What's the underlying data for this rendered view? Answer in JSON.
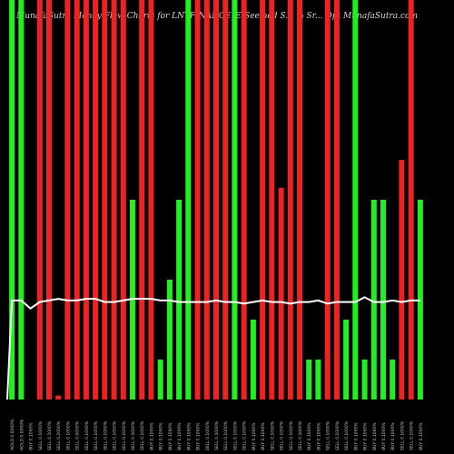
{
  "header": {
    "left": "MunafaSutra Money Flow Charts for LNTFINANCE_EB",
    "right": "Seemed S.S % Sr... Opt MunafaSutra.com"
  },
  "colors": {
    "background": "#000000",
    "up": "#22ee22",
    "down": "#ee2222",
    "line": "#ffffff",
    "tick_text": "#cccccc"
  },
  "chart_data": {
    "type": "bar",
    "title": "MunafaSutra Money Flow Charts for LNTFINANCE_EB",
    "ylim": [
      0,
      100
    ],
    "grid": false,
    "categories": [
      "HOLD 0.0000%",
      "HOLD 0.0000%",
      "BUY 0.1000%",
      "SELL 0.1000%",
      "SELL 0.1000%",
      "SELL 0.2000%",
      "SELL 0.1000%",
      "SELL 0.0000%",
      "SELL 0.1000%",
      "SELL 0.1000%",
      "SELL 0.1000%",
      "SELL 0.1000%",
      "SELL 0.1000%",
      "SELL 0.1000%",
      "SELL 0.1000%",
      "BUY 0.1000%",
      "BUY 0.1000%",
      "BUY 0.1000%",
      "BUY 0.1000%",
      "BUY 0.1000%",
      "BUY 0.1000%",
      "SELL 0.1000%",
      "SELL 0.1000%",
      "SELL 0.1000%",
      "SELL 0.1000%",
      "SELL 0.1000%",
      "BUY 0.1000%",
      "BUY 0.1000%",
      "SELL 0.1000%",
      "SELL 0.1000%",
      "SELL 0.1000%",
      "SELL 0.1000%",
      "BUY 0.1000%",
      "BUY 0.1000%",
      "SELL 0.1000%",
      "SELL 0.1000%",
      "SELL 0.1000%",
      "BUY 0.1000%",
      "BUY 0.1000%",
      "BUY 0.1000%",
      "BUY 0.1000%",
      "BUY 0.1000%",
      "SELL 0.1000%",
      "SELL 0.1000%",
      "BUY 0.1000%"
    ],
    "values": [
      100,
      100,
      0,
      100,
      100,
      1,
      100,
      100,
      100,
      100,
      100,
      100,
      100,
      50,
      100,
      100,
      10,
      30,
      50,
      100,
      100,
      100,
      100,
      100,
      100,
      100,
      20,
      100,
      100,
      53,
      100,
      100,
      10,
      10,
      100,
      100,
      20,
      100,
      10,
      50,
      50,
      10,
      60,
      100,
      50
    ],
    "colors": [
      "up",
      "up",
      "none",
      "down",
      "down",
      "down",
      "down",
      "down",
      "down",
      "down",
      "down",
      "down",
      "down",
      "up",
      "down",
      "down",
      "up",
      "up",
      "up",
      "up",
      "down",
      "down",
      "down",
      "down",
      "up",
      "down",
      "up",
      "down",
      "down",
      "down",
      "down",
      "down",
      "up",
      "up",
      "down",
      "down",
      "up",
      "up",
      "up",
      "up",
      "up",
      "up",
      "down",
      "down",
      "up"
    ],
    "line_ylim": [
      0,
      100
    ],
    "line": [
      62,
      62,
      57,
      61,
      62,
      63,
      62,
      62,
      63,
      63,
      61,
      61,
      62,
      63,
      63,
      63,
      62,
      62,
      61,
      61,
      61,
      61,
      62,
      61,
      61,
      60,
      61,
      62,
      61,
      61,
      60,
      61,
      61,
      62,
      60,
      61,
      61,
      61,
      64,
      61,
      61,
      62,
      61,
      62,
      62
    ]
  }
}
